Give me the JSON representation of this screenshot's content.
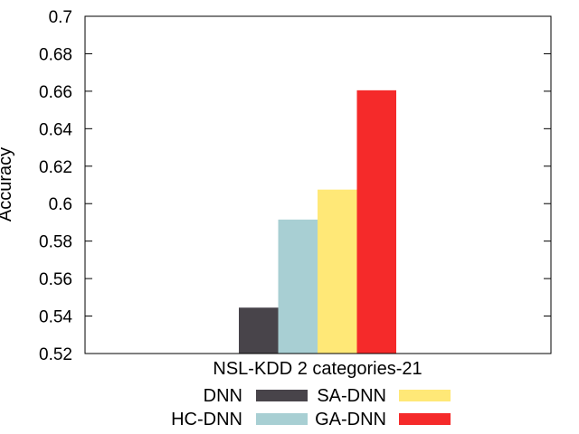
{
  "chart_data": {
    "type": "bar",
    "categories": [
      "NSL-KDD 2 categories-21"
    ],
    "series": [
      {
        "name": "DNN",
        "values": [
          0.5445
        ],
        "color": "#48444a"
      },
      {
        "name": "HC-DNN",
        "values": [
          0.5915
        ],
        "color": "#a8cfd3"
      },
      {
        "name": "SA-DNN",
        "values": [
          0.6075
        ],
        "color": "#ffe877"
      },
      {
        "name": "GA-DNN",
        "values": [
          0.6605
        ],
        "color": "#f52a2a"
      }
    ],
    "ylabel": "Accuracy",
    "ylim": [
      0.52,
      0.7
    ],
    "yticks": [
      "0.52",
      "0.54",
      "0.56",
      "0.58",
      "0.6",
      "0.62",
      "0.64",
      "0.66",
      "0.68",
      "0.7"
    ],
    "grid": false,
    "legend_position": "bottom"
  }
}
